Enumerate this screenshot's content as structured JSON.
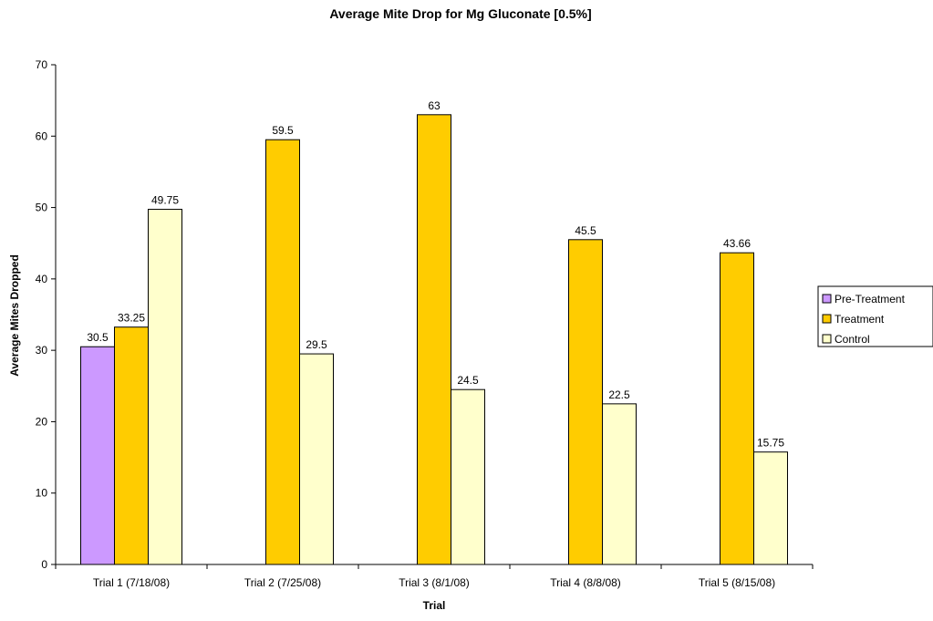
{
  "chart_data": {
    "type": "bar",
    "title": "Average Mite Drop for Mg Gluconate [0.5%]",
    "xlabel": "Trial",
    "ylabel": "Average Mites Dropped",
    "ylim": [
      0,
      70
    ],
    "yticks": [
      0,
      10,
      20,
      30,
      40,
      50,
      60,
      70
    ],
    "grid": false,
    "legend_position": "right",
    "categories": [
      "Trial 1 (7/18/08)",
      "Trial 2 (7/25/08)",
      "Trial 3 (8/1/08)",
      "Trial 4 (8/8/08)",
      "Trial 5 (8/15/08)"
    ],
    "series": [
      {
        "name": "Pre-Treatment",
        "color": "#CC99FF",
        "values": [
          30.5,
          null,
          null,
          null,
          null
        ],
        "labels": [
          "30.5",
          "",
          "",
          "",
          ""
        ]
      },
      {
        "name": "Treatment",
        "color": "#FFCC00",
        "values": [
          33.25,
          59.5,
          63,
          45.5,
          43.66
        ],
        "labels": [
          "33.25",
          "59.5",
          "63",
          "45.5",
          "43.66"
        ]
      },
      {
        "name": "Control",
        "color": "#FFFFCC",
        "values": [
          49.75,
          29.5,
          24.5,
          22.5,
          15.75
        ],
        "labels": [
          "49.75",
          "29.5",
          "24.5",
          "22.5",
          "15.75"
        ]
      }
    ]
  }
}
